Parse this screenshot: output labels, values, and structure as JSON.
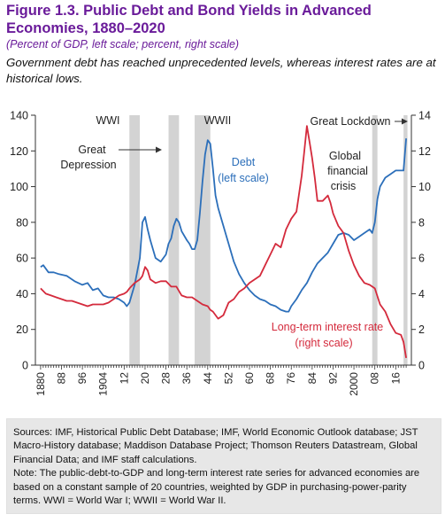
{
  "figure": {
    "title": "Figure 1.3. Public Debt and Bond Yields in Advanced Economies, 1880–2020",
    "subtitle": "(Percent of GDP, left scale; percent, right scale)",
    "lede": "Government debt has reached unprecedented levels, whereas interest rates are at historical lows."
  },
  "notes": {
    "sources": "Sources: IMF, Historical Public Debt Database; IMF, World Economic Outlook database; JST Macro-History database; Maddison Database Project; Thomson Reuters Datastream, Global Financial Data; and IMF staff calculations.",
    "note": "Note: The public-debt-to-GDP and long-term interest rate series for advanced economies are based on a constant sample of 20 countries, weighted by GDP in purchasing-power-parity terms. WWI = World War I; WWII = World War II."
  },
  "chart_data": {
    "type": "line",
    "colors": {
      "debt": "#2c6fba",
      "rate": "#d42a3c",
      "shade": "#d3d3d3",
      "title": "#6a1b9a"
    },
    "x_ticks": [
      "1880",
      "88",
      "96",
      "1904",
      "12",
      "20",
      "28",
      "36",
      "44",
      "52",
      "60",
      "68",
      "76",
      "84",
      "92",
      "2000",
      "08",
      "16"
    ],
    "xlim": [
      1878,
      2022
    ],
    "left_axis": {
      "ylim": [
        0,
        140
      ],
      "ticks": [
        "0",
        "20",
        "40",
        "60",
        "80",
        "100",
        "120",
        "140"
      ]
    },
    "right_axis": {
      "ylim": [
        0,
        14
      ],
      "ticks": [
        "0",
        "2",
        "4",
        "6",
        "8",
        "10",
        "12",
        "14"
      ]
    },
    "shaded_periods": [
      {
        "name": "WWI",
        "start": 1914,
        "end": 1918
      },
      {
        "name": "Great Depression",
        "start": 1929,
        "end": 1933
      },
      {
        "name": "WWII",
        "start": 1939,
        "end": 1945
      },
      {
        "name": "Global financial crisis",
        "start": 2007,
        "end": 2009
      },
      {
        "name": "Great Lockdown",
        "start": 2019,
        "end": 2020.5
      }
    ],
    "annotations": {
      "wwi": "WWI",
      "great_depression_1": "Great",
      "great_depression_2": "Depression",
      "wwii": "WWII",
      "great_lockdown": "Great Lockdown",
      "gfc_1": "Global",
      "gfc_2": "financial",
      "gfc_3": "crisis"
    },
    "series": [
      {
        "name": "Debt",
        "label_1": "Debt",
        "label_2": "(left scale)",
        "axis": "left",
        "x": [
          1880,
          1881,
          1883,
          1885,
          1887,
          1890,
          1893,
          1896,
          1898,
          1900,
          1902,
          1904,
          1906,
          1908,
          1910,
          1912,
          1913,
          1914,
          1916,
          1918,
          1919,
          1920,
          1921,
          1922,
          1924,
          1926,
          1928,
          1929,
          1930,
          1931,
          1932,
          1933,
          1934,
          1936,
          1937,
          1938,
          1939,
          1940,
          1941,
          1942,
          1943,
          1944,
          1945,
          1946,
          1947,
          1948,
          1950,
          1952,
          1954,
          1956,
          1958,
          1960,
          1962,
          1964,
          1966,
          1968,
          1970,
          1972,
          1974,
          1975,
          1976,
          1978,
          1980,
          1982,
          1984,
          1986,
          1988,
          1990,
          1992,
          1994,
          1996,
          1998,
          2000,
          2002,
          2004,
          2006,
          2007,
          2008,
          2009,
          2010,
          2012,
          2014,
          2016,
          2018,
          2019,
          2020
        ],
        "values": [
          55,
          56,
          52,
          52,
          51,
          50,
          47,
          45,
          46,
          42,
          43,
          39,
          38,
          38,
          37,
          35,
          33,
          35,
          45,
          60,
          80,
          83,
          76,
          70,
          60,
          58,
          62,
          68,
          71,
          78,
          82,
          80,
          75,
          70,
          68,
          65,
          65,
          70,
          85,
          103,
          118,
          126,
          124,
          110,
          95,
          88,
          78,
          68,
          58,
          51,
          46,
          42,
          39,
          37,
          36,
          34,
          33,
          31,
          30,
          30,
          33,
          37,
          42,
          46,
          52,
          57,
          60,
          63,
          68,
          73,
          74,
          73,
          70,
          72,
          74,
          76,
          74,
          80,
          93,
          100,
          105,
          107,
          109,
          109,
          109,
          127
        ]
      },
      {
        "name": "Long-term interest rate",
        "label_1": "Long-term interest rate",
        "label_2": "(right scale)",
        "axis": "right",
        "x": [
          1880,
          1882,
          1884,
          1886,
          1888,
          1890,
          1892,
          1894,
          1896,
          1898,
          1900,
          1902,
          1904,
          1906,
          1908,
          1910,
          1912,
          1913,
          1914,
          1916,
          1918,
          1919,
          1920,
          1921,
          1922,
          1924,
          1926,
          1928,
          1930,
          1932,
          1934,
          1936,
          1938,
          1940,
          1942,
          1944,
          1945,
          1946,
          1948,
          1950,
          1952,
          1954,
          1956,
          1958,
          1960,
          1962,
          1964,
          1966,
          1968,
          1970,
          1972,
          1974,
          1976,
          1978,
          1980,
          1981,
          1982,
          1983,
          1984,
          1985,
          1986,
          1988,
          1990,
          1991,
          1992,
          1994,
          1996,
          1998,
          2000,
          2002,
          2004,
          2006,
          2008,
          2010,
          2012,
          2014,
          2016,
          2018,
          2019,
          2020
        ],
        "values": [
          4.3,
          4.0,
          3.9,
          3.8,
          3.7,
          3.6,
          3.6,
          3.5,
          3.4,
          3.3,
          3.4,
          3.4,
          3.4,
          3.5,
          3.7,
          3.9,
          4.0,
          4.1,
          4.3,
          4.6,
          4.8,
          5.0,
          5.5,
          5.3,
          4.8,
          4.6,
          4.7,
          4.7,
          4.4,
          4.4,
          3.9,
          3.8,
          3.8,
          3.6,
          3.4,
          3.3,
          3.1,
          3.0,
          2.6,
          2.8,
          3.5,
          3.7,
          4.1,
          4.3,
          4.6,
          4.8,
          5.0,
          5.6,
          6.2,
          6.8,
          6.6,
          7.6,
          8.2,
          8.6,
          10.6,
          12.0,
          13.4,
          12.5,
          11.6,
          10.5,
          9.2,
          9.2,
          9.5,
          9.1,
          8.5,
          7.8,
          7.4,
          6.4,
          5.6,
          5.0,
          4.6,
          4.5,
          4.3,
          3.4,
          3.0,
          2.3,
          1.8,
          1.7,
          1.3,
          0.4
        ]
      }
    ]
  }
}
